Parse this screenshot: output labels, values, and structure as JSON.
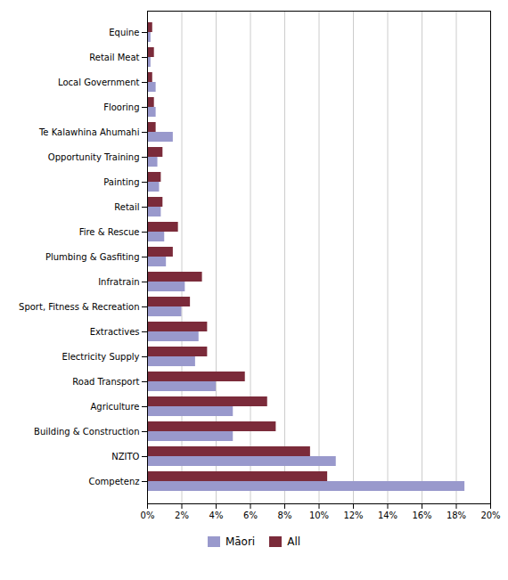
{
  "chart_data": {
    "type": "bar",
    "orientation": "horizontal",
    "categories": [
      "Competenz",
      "NZITO",
      "Building & Construction",
      "Agriculture",
      "Road Transport",
      "Electricity Supply",
      "Extractives",
      "Sport, Fitness & Recreation",
      "Infratrain",
      "Plumbing & Gasfiting",
      "Fire & Rescue",
      "Retail",
      "Painting",
      "Opportunity Training",
      "Te Kalawhina Ahumahi",
      "Flooring",
      "Local Government",
      "Retail Meat",
      "Equine"
    ],
    "series": [
      {
        "name": "Māori",
        "color": "#9999cc",
        "values": [
          18.5,
          11.0,
          5.0,
          5.0,
          4.0,
          2.8,
          3.0,
          2.0,
          2.2,
          1.1,
          1.0,
          0.8,
          0.7,
          0.6,
          1.5,
          0.5,
          0.5,
          0.2,
          0.2
        ]
      },
      {
        "name": "All",
        "color": "#7b2b3a",
        "values": [
          10.5,
          9.5,
          7.5,
          7.0,
          5.7,
          3.5,
          3.5,
          2.5,
          3.2,
          1.5,
          1.8,
          0.9,
          0.8,
          0.9,
          0.5,
          0.4,
          0.3,
          0.4,
          0.3
        ]
      }
    ],
    "xlim": [
      0,
      20
    ],
    "xticks": [
      {
        "value": 0,
        "label": "0%"
      },
      {
        "value": 2,
        "label": "2%"
      },
      {
        "value": 4,
        "label": "4%"
      },
      {
        "value": 6,
        "label": "6%"
      },
      {
        "value": 8,
        "label": "8%"
      },
      {
        "value": 10,
        "label": "10%"
      },
      {
        "value": 12,
        "label": "12%"
      },
      {
        "value": 14,
        "label": "14%"
      },
      {
        "value": 16,
        "label": "16%"
      },
      {
        "value": 18,
        "label": "18%"
      },
      {
        "value": 20,
        "label": "20%"
      }
    ],
    "grid": true,
    "legend": "bottom"
  }
}
